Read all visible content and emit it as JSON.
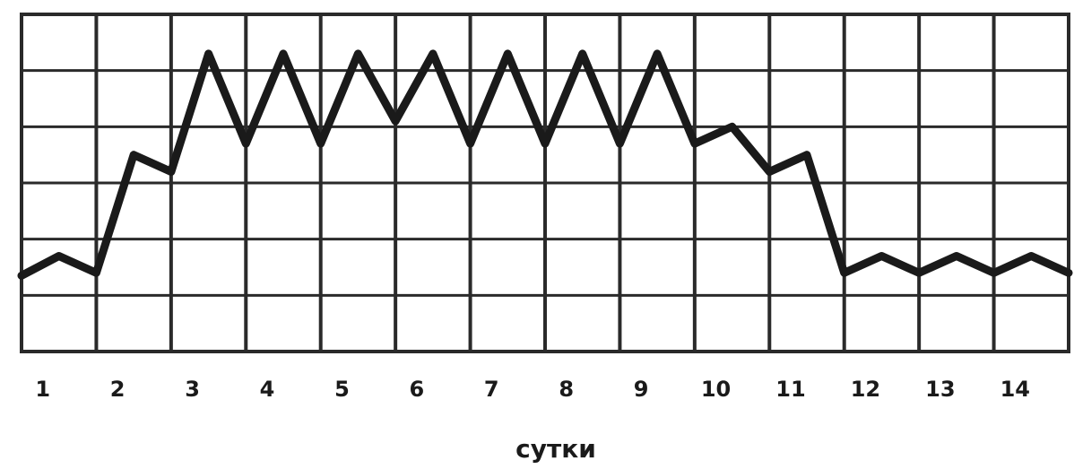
{
  "chart_data": {
    "type": "line",
    "title": "",
    "xlabel": "сутки",
    "ylabel": "",
    "x_tick_labels": [
      "1",
      "2",
      "3",
      "4",
      "5",
      "6",
      "7",
      "8",
      "9",
      "10",
      "11",
      "12",
      "13",
      "14"
    ],
    "xlim": [
      0.5,
      14.5
    ],
    "ylim": [
      0,
      6
    ],
    "grid": true,
    "legend": "none",
    "line_color": "#1a1a1a",
    "grid_color": "#2a2a2a",
    "series": [
      {
        "x": [
          0.5,
          1.0,
          1.5,
          2.0,
          2.5,
          3.0,
          3.5,
          4.0,
          4.5,
          5.0,
          5.5,
          6.0,
          6.5,
          7.0,
          7.5,
          8.0,
          8.5,
          9.0,
          9.5,
          10.0,
          10.5,
          11.0,
          11.5,
          12.0,
          12.5,
          13.0,
          13.5,
          14.0,
          14.5
        ],
        "values": [
          1.35,
          1.7,
          1.4,
          3.5,
          3.2,
          5.3,
          3.7,
          5.3,
          3.7,
          5.3,
          4.1,
          5.3,
          3.7,
          5.3,
          3.7,
          5.3,
          3.7,
          5.3,
          3.7,
          4.0,
          3.2,
          3.5,
          1.4,
          1.7,
          1.4,
          1.7,
          1.4,
          1.7,
          1.4
        ]
      }
    ]
  }
}
